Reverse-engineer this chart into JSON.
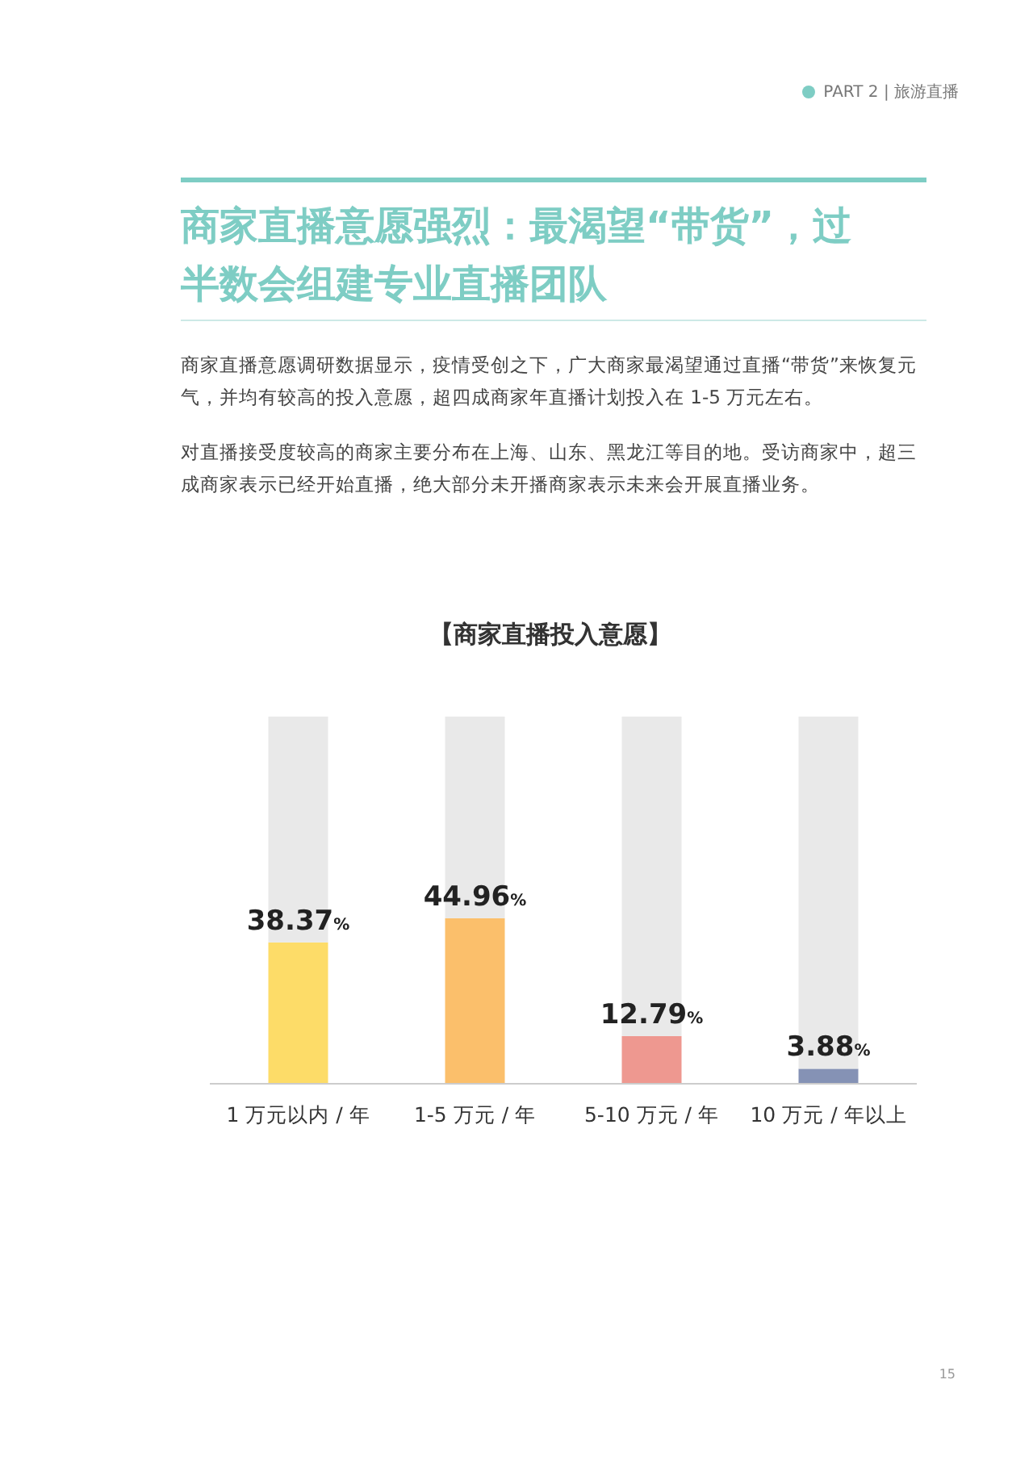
{
  "chart_data": {
    "type": "bar",
    "stacked": true,
    "title": "【商家直播投入意愿】",
    "categories": [
      "1 万元以内 / 年",
      "1-5 万元 / 年",
      "5-10 万元 / 年",
      "10 万元 / 年以上"
    ],
    "series": [
      {
        "colors": [
          "#fddc68",
          "#fbbf6b",
          "#ee9890",
          "#8592b5"
        ],
        "values": [
          38.37,
          44.96,
          12.79,
          3.88
        ],
        "value_labels": [
          "38.37%",
          "44.96%",
          "12.79%",
          "3.88%"
        ]
      },
      {
        "color": "#e9e9e9",
        "values": [
          61.63,
          55.04,
          87.21,
          96.12
        ]
      }
    ],
    "annotations": [
      "PART 2 | 旅游直播",
      "商家直播意愿强烈：最渴望“带货”，过半数会组建专业直播团队",
      "商家直播意愿调研数据显示，疫情受创之下，广大商家最渴望通过直播“带货”来恢复元气，并均有较高的投入意愿，超四成商家年直播计划投入在 1-5 万元左右。",
      "对直播接受度较高的商家主要分布在上海、山东、黑龙江等目的地。受访商家中，超三成商家表示已经开始直播，绝大部分未开播商家表示未来会开展直播业务。",
      "15"
    ]
  }
}
